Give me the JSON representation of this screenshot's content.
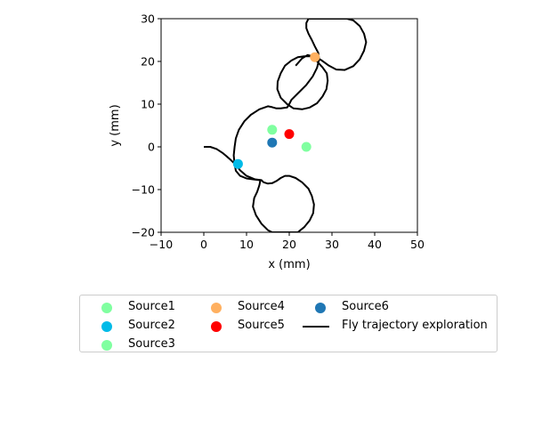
{
  "chart_data": {
    "type": "scatter",
    "xlabel": "x (mm)",
    "ylabel": "y (mm)",
    "xlim": [
      -10,
      50
    ],
    "ylim": [
      -20,
      30
    ],
    "xticks": [
      -10,
      0,
      10,
      20,
      30,
      40,
      50
    ],
    "yticks": [
      -20,
      -10,
      0,
      10,
      20,
      30
    ],
    "grid": false,
    "legend_position": "below",
    "series": [
      {
        "name": "Source1",
        "kind": "point",
        "color": "#80ffa0",
        "x": 16,
        "y": 4
      },
      {
        "name": "Source2",
        "kind": "point",
        "color": "#00bbe8",
        "x": 8,
        "y": -4
      },
      {
        "name": "Source3",
        "kind": "point",
        "color": "#80ffa0",
        "x": 24,
        "y": 0
      },
      {
        "name": "Source4",
        "kind": "point",
        "color": "#ffb060",
        "x": 26,
        "y": 21
      },
      {
        "name": "Source5",
        "kind": "point",
        "color": "#ff0000",
        "x": 20,
        "y": 3
      },
      {
        "name": "Source6",
        "kind": "point",
        "color": "#1f77b4",
        "x": 16,
        "y": 1
      },
      {
        "name": "Fly trajectory exploration",
        "kind": "line",
        "color": "#000000",
        "points": [
          [
            0,
            0
          ],
          [
            1.5,
            0
          ],
          [
            3,
            -0.5
          ],
          [
            4.5,
            -1.5
          ],
          [
            6,
            -2.8
          ],
          [
            7.5,
            -4.2
          ],
          [
            8.5,
            -5.5
          ],
          [
            10,
            -6.8
          ],
          [
            12,
            -7.6
          ],
          [
            13.5,
            -7.8
          ],
          [
            14,
            -8.3
          ],
          [
            15,
            -8.6
          ],
          [
            16,
            -8.5
          ],
          [
            17,
            -8
          ],
          [
            18,
            -7.3
          ],
          [
            19,
            -6.8
          ],
          [
            20,
            -6.8
          ],
          [
            21.5,
            -7.3
          ],
          [
            23,
            -8.3
          ],
          [
            24.5,
            -9.8
          ],
          [
            25.3,
            -11.5
          ],
          [
            25.8,
            -13.5
          ],
          [
            25.6,
            -15.5
          ],
          [
            24.8,
            -17.2
          ],
          [
            23.5,
            -18.8
          ],
          [
            22,
            -20
          ],
          [
            21,
            -20
          ],
          [
            16,
            -20
          ],
          [
            15,
            -19.5
          ],
          [
            13.5,
            -18
          ],
          [
            12.2,
            -16
          ],
          [
            11.5,
            -14
          ],
          [
            11.8,
            -12
          ],
          [
            12.5,
            -10.5
          ],
          [
            13,
            -9
          ],
          [
            13.2,
            -8
          ],
          [
            13,
            -7.8
          ],
          [
            11.5,
            -7.6
          ],
          [
            10,
            -7.4
          ],
          [
            8.5,
            -6.8
          ],
          [
            7.5,
            -5.6
          ],
          [
            7.2,
            -4
          ],
          [
            7,
            -2
          ],
          [
            7.2,
            0
          ],
          [
            7.5,
            2
          ],
          [
            8.2,
            4
          ],
          [
            9.5,
            6
          ],
          [
            11,
            7.5
          ],
          [
            13,
            8.8
          ],
          [
            15,
            9.5
          ],
          [
            16,
            9.3
          ],
          [
            17,
            9
          ],
          [
            18,
            9
          ],
          [
            19.5,
            9.2
          ],
          [
            20,
            10
          ],
          [
            20.5,
            11
          ],
          [
            22,
            12.5
          ],
          [
            24,
            14.5
          ],
          [
            25.5,
            16.5
          ],
          [
            26.5,
            18.5
          ],
          [
            27,
            20.5
          ],
          [
            26.8,
            22
          ],
          [
            26,
            23.5
          ],
          [
            25.3,
            25
          ],
          [
            24.5,
            26.5
          ],
          [
            24,
            27.8
          ],
          [
            24,
            29
          ],
          [
            24.5,
            30
          ],
          [
            32,
            30
          ],
          [
            33.5,
            30
          ],
          [
            35,
            29.6
          ],
          [
            36.5,
            28.3
          ],
          [
            37.5,
            26.5
          ],
          [
            38,
            24.5
          ],
          [
            37.5,
            22.5
          ],
          [
            36.5,
            20.5
          ],
          [
            35,
            18.9
          ],
          [
            33,
            18
          ],
          [
            31,
            18.1
          ],
          [
            29.3,
            19
          ],
          [
            27.5,
            20.3
          ],
          [
            26.3,
            21
          ],
          [
            25,
            21.2
          ],
          [
            23.5,
            21.2
          ],
          [
            22,
            21
          ],
          [
            20.5,
            20.2
          ],
          [
            19,
            19
          ],
          [
            18,
            17.2
          ],
          [
            17.3,
            15.3
          ],
          [
            17.2,
            13.5
          ],
          [
            18,
            11.5
          ],
          [
            19.5,
            10
          ],
          [
            21,
            9
          ],
          [
            23,
            8.8
          ],
          [
            24.8,
            9.2
          ],
          [
            26.5,
            10.2
          ],
          [
            27.8,
            11.8
          ],
          [
            28.7,
            13.5
          ],
          [
            29,
            15.5
          ],
          [
            28.8,
            17.2
          ],
          [
            27.8,
            18.6
          ],
          [
            26.5,
            20
          ],
          [
            25.5,
            21.2
          ],
          [
            24.3,
            21.5
          ],
          [
            23,
            20.7
          ],
          [
            21.5,
            19
          ]
        ]
      }
    ]
  },
  "legend": {
    "items": [
      {
        "label": "Source1",
        "kind": "point",
        "color": "#80ffa0"
      },
      {
        "label": "Source2",
        "kind": "point",
        "color": "#00bbe8"
      },
      {
        "label": "Source3",
        "kind": "point",
        "color": "#80ffa0"
      },
      {
        "label": "Source4",
        "kind": "point",
        "color": "#ffb060"
      },
      {
        "label": "Source5",
        "kind": "point",
        "color": "#ff0000"
      },
      {
        "label": "Source6",
        "kind": "point",
        "color": "#1f77b4"
      },
      {
        "label": "Fly trajectory exploration",
        "kind": "line",
        "color": "#000000"
      }
    ]
  }
}
